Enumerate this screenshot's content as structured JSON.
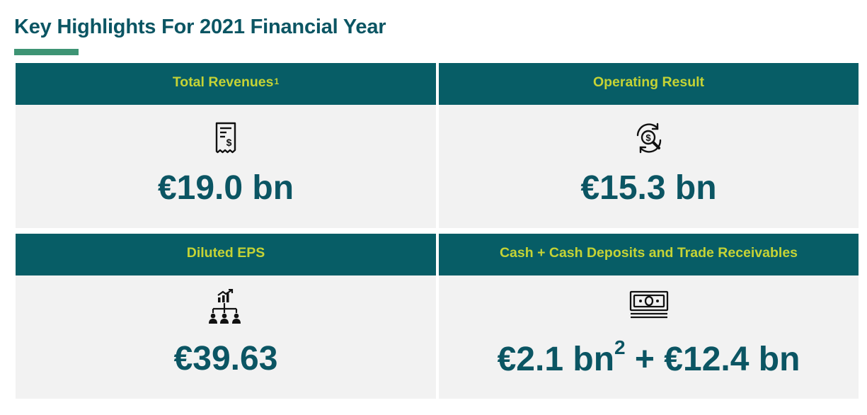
{
  "page": {
    "title": "Key Highlights For 2021 Financial Year"
  },
  "colors": {
    "title": "#0b5563",
    "accent_rule": "#3e9474",
    "header_bg": "#075d66",
    "header_text": "#c5d335",
    "card_bg": "#f2f2f2",
    "value_text": "#0b5563"
  },
  "cards": [
    {
      "title": "Total Revenues",
      "title_sup": "1",
      "icon": "receipt-dollar-icon",
      "value": "€19.0 bn"
    },
    {
      "title": "Operating Result",
      "icon": "dollar-search-cycle-icon",
      "value": "€15.3 bn"
    },
    {
      "title": "Diluted EPS",
      "icon": "growth-org-chart-icon",
      "value": "€39.63"
    },
    {
      "title": "Cash + Cash Deposits and Trade Receivables",
      "icon": "cash-stack-icon",
      "value_part1": "€2.1 bn",
      "value_sup": "2",
      "value_part2": " + €12.4 bn"
    }
  ]
}
